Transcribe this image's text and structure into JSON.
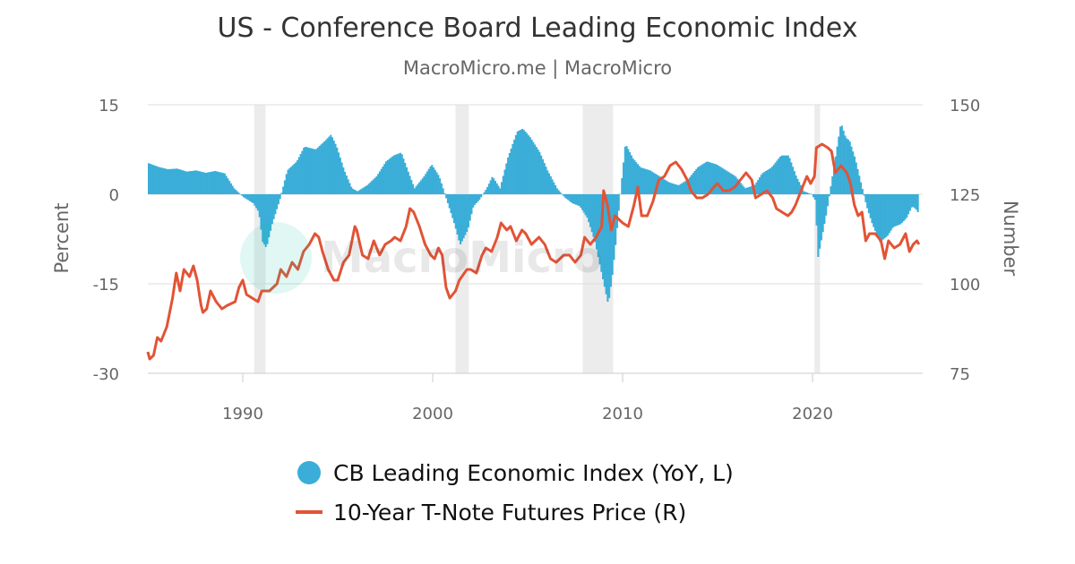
{
  "title": "US - Conference Board Leading Economic Index",
  "subtitle": "MacroMicro.me | MacroMicro",
  "watermark_text": "MacroMicro",
  "colors": {
    "lei": "#3aaed8",
    "tnote": "#e25335",
    "recession": "#ececec",
    "grid": "#dedede"
  },
  "legend": {
    "lei": "CB Leading Economic Index (YoY, L)",
    "tnote": "10-Year T-Note Futures Price (R)"
  },
  "chart_data": {
    "type": "bar+line",
    "title": "US - Conference Board Leading Economic Index",
    "subtitle": "MacroMicro.me | MacroMicro",
    "x_range": [
      1985.0,
      2025.8
    ],
    "x_ticks": [
      1990,
      2000,
      2010,
      2020
    ],
    "y_left": {
      "label": "Percent",
      "range": [
        -30,
        15
      ],
      "ticks": [
        15,
        0,
        -15,
        -30
      ]
    },
    "y_right": {
      "label": "Number",
      "range": [
        75,
        150
      ],
      "ticks": [
        150,
        125,
        100,
        75
      ]
    },
    "grid": true,
    "legend_position": "bottom",
    "recessions": [
      [
        1990.6,
        1991.2
      ],
      [
        2001.2,
        2001.9
      ],
      [
        2007.9,
        2009.5
      ],
      [
        2020.1,
        2020.4
      ]
    ],
    "series": [
      {
        "name": "CB Leading Economic Index (YoY, L)",
        "type": "bar",
        "axis": "left",
        "points": [
          [
            1985.0,
            5.2
          ],
          [
            1985.5,
            4.6
          ],
          [
            1986.0,
            4.2
          ],
          [
            1986.5,
            4.3
          ],
          [
            1987.0,
            3.8
          ],
          [
            1987.5,
            4.0
          ],
          [
            1988.0,
            3.6
          ],
          [
            1988.5,
            3.9
          ],
          [
            1989.0,
            3.5
          ],
          [
            1989.5,
            1.0
          ],
          [
            1990.0,
            -0.5
          ],
          [
            1990.5,
            -1.5
          ],
          [
            1990.8,
            -3.0
          ],
          [
            1991.0,
            -8.0
          ],
          [
            1991.2,
            -9.0
          ],
          [
            1991.5,
            -5.0
          ],
          [
            1991.9,
            -1.0
          ],
          [
            1992.3,
            4.0
          ],
          [
            1992.8,
            5.5
          ],
          [
            1993.2,
            8.0
          ],
          [
            1993.8,
            7.5
          ],
          [
            1994.3,
            9.0
          ],
          [
            1994.6,
            10.0
          ],
          [
            1994.9,
            8.0
          ],
          [
            1995.3,
            4.0
          ],
          [
            1995.7,
            1.0
          ],
          [
            1996.0,
            0.5
          ],
          [
            1996.5,
            1.5
          ],
          [
            1997.0,
            3.0
          ],
          [
            1997.5,
            5.5
          ],
          [
            1997.9,
            6.5
          ],
          [
            1998.3,
            7.0
          ],
          [
            1998.7,
            3.5
          ],
          [
            1999.0,
            1.0
          ],
          [
            1999.5,
            3.0
          ],
          [
            1999.9,
            5.0
          ],
          [
            2000.3,
            3.0
          ],
          [
            2000.7,
            -1.0
          ],
          [
            2001.1,
            -5.0
          ],
          [
            2001.4,
            -8.5
          ],
          [
            2001.8,
            -6.0
          ],
          [
            2002.1,
            -2.0
          ],
          [
            2002.4,
            -1.0
          ],
          [
            2002.8,
            1.0
          ],
          [
            2003.1,
            3.0
          ],
          [
            2003.5,
            1.0
          ],
          [
            2003.9,
            6.0
          ],
          [
            2004.4,
            10.5
          ],
          [
            2004.7,
            11.0
          ],
          [
            2005.1,
            9.5
          ],
          [
            2005.6,
            7.0
          ],
          [
            2006.0,
            4.0
          ],
          [
            2006.5,
            1.0
          ],
          [
            2006.9,
            -0.5
          ],
          [
            2007.3,
            -1.5
          ],
          [
            2007.7,
            -2.0
          ],
          [
            2008.1,
            -4.0
          ],
          [
            2008.5,
            -8.0
          ],
          [
            2008.9,
            -14.0
          ],
          [
            2009.2,
            -18.5
          ],
          [
            2009.4,
            -14.0
          ],
          [
            2009.6,
            -8.0
          ],
          [
            2009.8,
            -1.0
          ],
          [
            2010.1,
            8.5
          ],
          [
            2010.5,
            6.0
          ],
          [
            2010.9,
            4.5
          ],
          [
            2011.4,
            4.0
          ],
          [
            2011.9,
            3.0
          ],
          [
            2012.4,
            2.0
          ],
          [
            2012.9,
            1.5
          ],
          [
            2013.4,
            2.5
          ],
          [
            2013.9,
            4.5
          ],
          [
            2014.4,
            5.5
          ],
          [
            2014.9,
            5.0
          ],
          [
            2015.4,
            4.0
          ],
          [
            2015.9,
            3.0
          ],
          [
            2016.4,
            1.0
          ],
          [
            2016.9,
            1.5
          ],
          [
            2017.3,
            3.5
          ],
          [
            2017.8,
            4.5
          ],
          [
            2018.3,
            6.5
          ],
          [
            2018.7,
            6.5
          ],
          [
            2019.1,
            3.0
          ],
          [
            2019.5,
            0.5
          ],
          [
            2019.9,
            0.0
          ],
          [
            2020.1,
            -1.0
          ],
          [
            2020.25,
            -10.5
          ],
          [
            2020.4,
            -8.0
          ],
          [
            2020.7,
            -3.0
          ],
          [
            2021.0,
            3.0
          ],
          [
            2021.3,
            9.0
          ],
          [
            2021.45,
            12.0
          ],
          [
            2021.7,
            9.5
          ],
          [
            2021.9,
            9.0
          ],
          [
            2022.2,
            6.0
          ],
          [
            2022.5,
            2.0
          ],
          [
            2022.8,
            -2.0
          ],
          [
            2023.1,
            -5.0
          ],
          [
            2023.5,
            -8.0
          ],
          [
            2023.9,
            -7.0
          ],
          [
            2024.2,
            -5.5
          ],
          [
            2024.6,
            -5.0
          ],
          [
            2024.9,
            -4.0
          ],
          [
            2025.2,
            -2.0
          ],
          [
            2025.4,
            -2.5
          ],
          [
            2025.5,
            -3.0
          ]
        ]
      },
      {
        "name": "10-Year T-Note Futures Price (R)",
        "type": "line",
        "axis": "right",
        "points": [
          [
            1985.0,
            81
          ],
          [
            1985.1,
            79
          ],
          [
            1985.3,
            80
          ],
          [
            1985.5,
            85
          ],
          [
            1985.7,
            84
          ],
          [
            1986.0,
            88
          ],
          [
            1986.3,
            96
          ],
          [
            1986.5,
            103
          ],
          [
            1986.7,
            98
          ],
          [
            1986.9,
            104
          ],
          [
            1987.2,
            102
          ],
          [
            1987.4,
            105
          ],
          [
            1987.6,
            101
          ],
          [
            1987.8,
            94
          ],
          [
            1987.9,
            92
          ],
          [
            1988.1,
            93
          ],
          [
            1988.3,
            98
          ],
          [
            1988.6,
            95
          ],
          [
            1988.9,
            93
          ],
          [
            1989.2,
            94
          ],
          [
            1989.6,
            95
          ],
          [
            1989.8,
            99
          ],
          [
            1990.0,
            101
          ],
          [
            1990.2,
            97
          ],
          [
            1990.5,
            96
          ],
          [
            1990.8,
            95
          ],
          [
            1991.0,
            98
          ],
          [
            1991.4,
            98
          ],
          [
            1991.8,
            100
          ],
          [
            1992.0,
            104
          ],
          [
            1992.3,
            102
          ],
          [
            1992.6,
            106
          ],
          [
            1992.9,
            104
          ],
          [
            1993.2,
            109
          ],
          [
            1993.5,
            111
          ],
          [
            1993.8,
            114
          ],
          [
            1994.0,
            113
          ],
          [
            1994.2,
            109
          ],
          [
            1994.5,
            104
          ],
          [
            1994.8,
            101
          ],
          [
            1995.0,
            101
          ],
          [
            1995.3,
            106
          ],
          [
            1995.6,
            108
          ],
          [
            1995.9,
            116
          ],
          [
            1996.0,
            115
          ],
          [
            1996.3,
            108
          ],
          [
            1996.6,
            107
          ],
          [
            1996.9,
            112
          ],
          [
            1997.2,
            108
          ],
          [
            1997.5,
            111
          ],
          [
            1997.8,
            112
          ],
          [
            1998.0,
            113
          ],
          [
            1998.3,
            112
          ],
          [
            1998.6,
            116
          ],
          [
            1998.8,
            121
          ],
          [
            1999.0,
            120
          ],
          [
            1999.3,
            116
          ],
          [
            1999.6,
            111
          ],
          [
            1999.9,
            108
          ],
          [
            2000.1,
            107
          ],
          [
            2000.3,
            110
          ],
          [
            2000.5,
            108
          ],
          [
            2000.7,
            99
          ],
          [
            2000.9,
            96
          ],
          [
            2001.2,
            98
          ],
          [
            2001.4,
            101
          ],
          [
            2001.8,
            104
          ],
          [
            2002.0,
            104
          ],
          [
            2002.3,
            103
          ],
          [
            2002.6,
            108
          ],
          [
            2002.8,
            110
          ],
          [
            2003.1,
            109
          ],
          [
            2003.4,
            113
          ],
          [
            2003.6,
            117
          ],
          [
            2003.9,
            115
          ],
          [
            2004.1,
            116
          ],
          [
            2004.4,
            112
          ],
          [
            2004.7,
            115
          ],
          [
            2004.9,
            114
          ],
          [
            2005.2,
            111
          ],
          [
            2005.6,
            113
          ],
          [
            2005.9,
            111
          ],
          [
            2006.2,
            107
          ],
          [
            2006.5,
            106
          ],
          [
            2006.9,
            108
          ],
          [
            2007.2,
            108
          ],
          [
            2007.5,
            106
          ],
          [
            2007.8,
            108
          ],
          [
            2008.0,
            113
          ],
          [
            2008.3,
            111
          ],
          [
            2008.6,
            113
          ],
          [
            2008.9,
            116
          ],
          [
            2009.0,
            126
          ],
          [
            2009.2,
            122
          ],
          [
            2009.4,
            115
          ],
          [
            2009.6,
            119
          ],
          [
            2009.8,
            118
          ],
          [
            2010.0,
            117
          ],
          [
            2010.3,
            116
          ],
          [
            2010.6,
            122
          ],
          [
            2010.8,
            127
          ],
          [
            2011.0,
            119
          ],
          [
            2011.3,
            119
          ],
          [
            2011.6,
            123
          ],
          [
            2011.9,
            129
          ],
          [
            2012.2,
            130
          ],
          [
            2012.5,
            133
          ],
          [
            2012.8,
            134
          ],
          [
            2013.1,
            132
          ],
          [
            2013.4,
            129
          ],
          [
            2013.6,
            126
          ],
          [
            2013.9,
            124
          ],
          [
            2014.2,
            124
          ],
          [
            2014.5,
            125
          ],
          [
            2014.8,
            127
          ],
          [
            2015.0,
            128
          ],
          [
            2015.3,
            126
          ],
          [
            2015.6,
            126
          ],
          [
            2015.9,
            127
          ],
          [
            2016.2,
            129
          ],
          [
            2016.5,
            131
          ],
          [
            2016.8,
            129
          ],
          [
            2017.0,
            124
          ],
          [
            2017.3,
            125
          ],
          [
            2017.6,
            126
          ],
          [
            2017.9,
            124
          ],
          [
            2018.1,
            121
          ],
          [
            2018.4,
            120
          ],
          [
            2018.7,
            119
          ],
          [
            2018.9,
            120
          ],
          [
            2019.1,
            122
          ],
          [
            2019.4,
            126
          ],
          [
            2019.7,
            130
          ],
          [
            2019.9,
            128
          ],
          [
            2020.1,
            130
          ],
          [
            2020.2,
            138
          ],
          [
            2020.5,
            139
          ],
          [
            2020.8,
            138
          ],
          [
            2021.0,
            137
          ],
          [
            2021.2,
            131
          ],
          [
            2021.5,
            133
          ],
          [
            2021.8,
            131
          ],
          [
            2022.0,
            128
          ],
          [
            2022.2,
            122
          ],
          [
            2022.4,
            119
          ],
          [
            2022.6,
            120
          ],
          [
            2022.8,
            112
          ],
          [
            2023.0,
            114
          ],
          [
            2023.3,
            114
          ],
          [
            2023.6,
            112
          ],
          [
            2023.8,
            107
          ],
          [
            2024.0,
            112
          ],
          [
            2024.3,
            110
          ],
          [
            2024.6,
            111
          ],
          [
            2024.9,
            114
          ],
          [
            2025.1,
            109
          ],
          [
            2025.3,
            111
          ],
          [
            2025.5,
            112
          ],
          [
            2025.6,
            111
          ]
        ]
      }
    ]
  }
}
